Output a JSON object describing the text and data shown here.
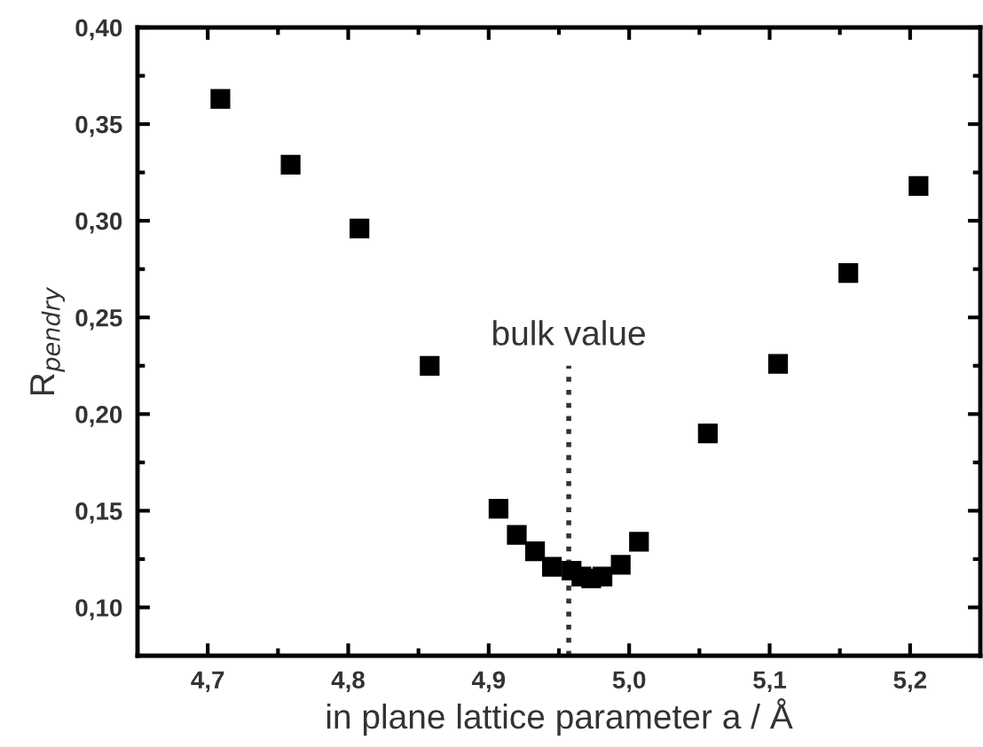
{
  "chart_data": {
    "type": "scatter",
    "xlabel": "in plane lattice parameter a / Å",
    "ylabel": "R$_{pendry}$",
    "x": [
      4.709,
      4.759,
      4.808,
      4.858,
      4.907,
      4.92,
      4.933,
      4.945,
      4.959,
      4.966,
      4.973,
      4.981,
      4.994,
      5.007,
      5.056,
      5.106,
      5.156,
      5.206
    ],
    "values": [
      0.363,
      0.329,
      0.296,
      0.225,
      0.151,
      0.1375,
      0.129,
      0.121,
      0.119,
      0.116,
      0.115,
      0.116,
      0.122,
      0.134,
      0.19,
      0.226,
      0.273,
      0.318
    ],
    "color": "#000000",
    "marker": "square",
    "xlim": [
      4.65,
      5.25
    ],
    "ylim": [
      0.075,
      0.4
    ],
    "xticks": [
      {
        "value": 4.7,
        "label": "4,7"
      },
      {
        "value": 4.75,
        "label": null
      },
      {
        "value": 4.8,
        "label": "4,8"
      },
      {
        "value": 4.85,
        "label": null
      },
      {
        "value": 4.9,
        "label": "4,9"
      },
      {
        "value": 4.95,
        "label": null
      },
      {
        "value": 5.0,
        "label": "5,0"
      },
      {
        "value": 5.05,
        "label": null
      },
      {
        "value": 5.1,
        "label": "5,1"
      },
      {
        "value": 5.15,
        "label": null
      },
      {
        "value": 5.2,
        "label": "5,2"
      }
    ],
    "yticks": [
      {
        "value": 0.1,
        "label": "0,10"
      },
      {
        "value": 0.125,
        "label": null
      },
      {
        "value": 0.15,
        "label": "0,15"
      },
      {
        "value": 0.175,
        "label": null
      },
      {
        "value": 0.2,
        "label": "0,20"
      },
      {
        "value": 0.225,
        "label": null
      },
      {
        "value": 0.25,
        "label": "0,25"
      },
      {
        "value": 0.275,
        "label": null
      },
      {
        "value": 0.3,
        "label": "0,30"
      },
      {
        "value": 0.325,
        "label": null
      },
      {
        "value": 0.35,
        "label": "0,35"
      },
      {
        "value": 0.375,
        "label": null
      },
      {
        "value": 0.4,
        "label": "0,40"
      }
    ],
    "ref_lines": [
      {
        "axis": "x",
        "value": 4.957,
        "label": "bulk value",
        "color": "#333333",
        "line_style": "dotted"
      }
    ],
    "grid": false,
    "legend": false
  }
}
